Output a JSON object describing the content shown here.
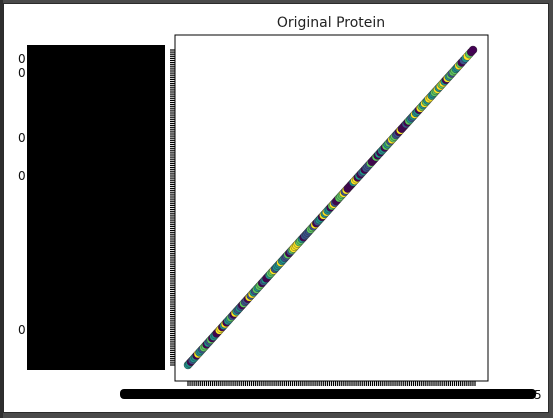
{
  "chart_data": {
    "type": "scatter",
    "title": "Original Protein",
    "xlabel": "",
    "ylabel": "",
    "grid": false,
    "colormap": [
      "#440154",
      "#3b528b",
      "#21918c",
      "#5ec962",
      "#fde725"
    ],
    "series": [
      {
        "x": [
          0.0,
          0.03,
          0.06,
          0.09,
          0.12,
          0.15,
          0.18,
          0.21,
          0.24,
          0.27,
          0.3,
          0.33,
          0.36,
          0.39,
          0.42,
          0.45,
          0.48,
          0.51,
          0.54,
          0.57,
          0.6,
          0.63,
          0.66,
          0.69,
          0.72,
          0.75,
          0.78,
          0.81,
          0.84,
          0.87,
          0.9,
          0.93,
          0.96,
          1.0
        ],
        "y": [
          0.0,
          0.03,
          0.06,
          0.09,
          0.12,
          0.15,
          0.18,
          0.21,
          0.24,
          0.27,
          0.3,
          0.33,
          0.36,
          0.39,
          0.42,
          0.45,
          0.48,
          0.51,
          0.54,
          0.57,
          0.6,
          0.63,
          0.66,
          0.69,
          0.72,
          0.75,
          0.78,
          0.81,
          0.84,
          0.87,
          0.9,
          0.93,
          0.96,
          1.0
        ]
      }
    ],
    "xlim": [
      0,
      1
    ],
    "ylim": [
      0,
      1
    ],
    "visible_tick_labels": [
      {
        "axis": "y",
        "text": "0"
      },
      {
        "axis": "y",
        "text": "0"
      },
      {
        "axis": "y",
        "text": "0"
      },
      {
        "axis": "y",
        "text": "0"
      },
      {
        "axis": "y",
        "text": "0"
      },
      {
        "axis": "x",
        "text": "5"
      }
    ]
  }
}
